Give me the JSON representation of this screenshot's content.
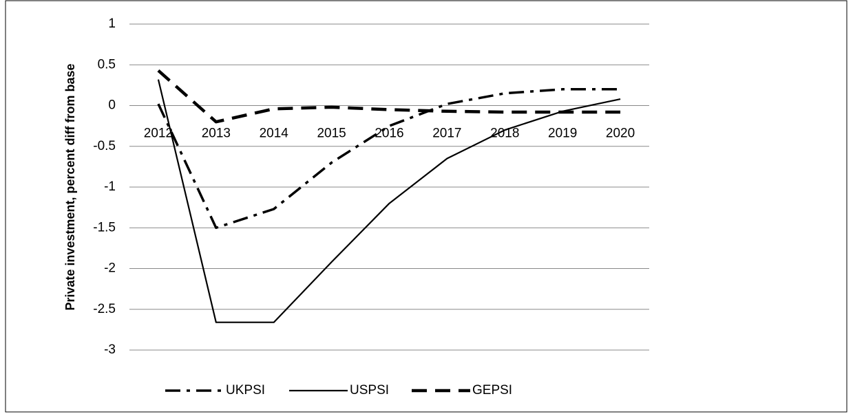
{
  "chart_data": {
    "type": "line",
    "y_label": "Private investment, percent diff from base",
    "categories": [
      "2012",
      "2013",
      "2014",
      "2015",
      "2016",
      "2017",
      "2018",
      "2019",
      "2020"
    ],
    "series": [
      {
        "name": "UKPSI",
        "color": "#000000",
        "line_style": "dash-dot",
        "values": [
          0.02,
          -1.5,
          -1.27,
          -0.7,
          -0.25,
          0.02,
          0.15,
          0.2,
          0.2
        ]
      },
      {
        "name": "USPSI",
        "color": "#000000",
        "line_style": "solid",
        "values": [
          0.32,
          -2.66,
          -2.66,
          -1.92,
          -1.2,
          -0.65,
          -0.3,
          -0.07,
          0.08
        ]
      },
      {
        "name": "GEPSI",
        "color": "#000000",
        "line_style": "dash",
        "values": [
          0.43,
          -0.2,
          -0.04,
          -0.02,
          -0.05,
          -0.07,
          -0.08,
          -0.08,
          -0.08
        ]
      }
    ],
    "ylim": [
      -3,
      1
    ],
    "yticks": [
      1,
      0.5,
      0,
      -0.5,
      -1,
      -1.5,
      -2,
      -2.5,
      -3
    ],
    "grid": true,
    "legend": "bottom"
  }
}
